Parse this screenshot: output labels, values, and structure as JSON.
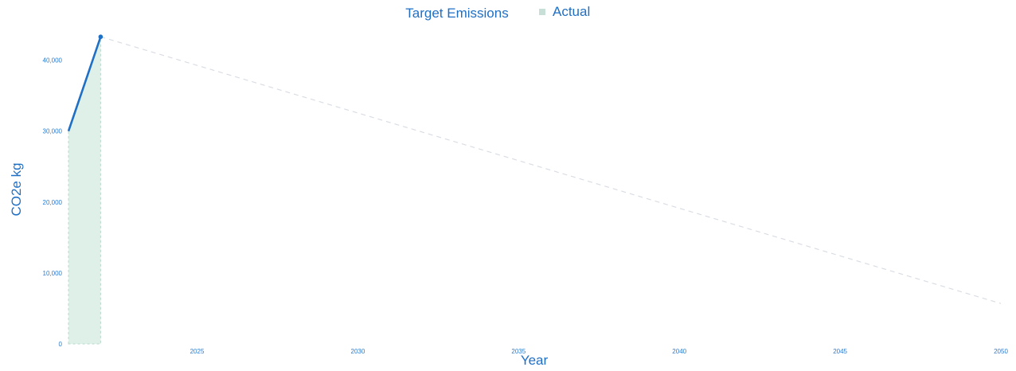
{
  "chart_data": {
    "type": "line",
    "legend": {
      "position": "top-center",
      "items": [
        {
          "label": "Target Emissions",
          "marker": "none"
        },
        {
          "label": "Actual",
          "marker": "square"
        }
      ]
    },
    "xlabel": "Year",
    "ylabel": "CO2e kg",
    "xlim": [
      2021,
      2050
    ],
    "ylim": [
      0,
      44000
    ],
    "x_ticks": [
      2025,
      2030,
      2035,
      2040,
      2045,
      2050
    ],
    "y_ticks": [
      0,
      10000,
      20000,
      30000,
      40000
    ],
    "y_tick_labels": [
      "0",
      "10,000",
      "20,000",
      "30,000",
      "40,000"
    ],
    "grid": false,
    "series": [
      {
        "name": "Target Emissions",
        "style": "dashed",
        "color": "#d9dde3",
        "points": [
          {
            "x": 2022,
            "y": 43300
          },
          {
            "x": 2050,
            "y": 5700
          }
        ]
      },
      {
        "name": "Actual",
        "style": "solid-with-area",
        "color": "#1f6fc5",
        "area_color": "#dff0e8",
        "points": [
          {
            "x": 2021,
            "y": 30000
          },
          {
            "x": 2022,
            "y": 43300
          }
        ]
      }
    ]
  }
}
